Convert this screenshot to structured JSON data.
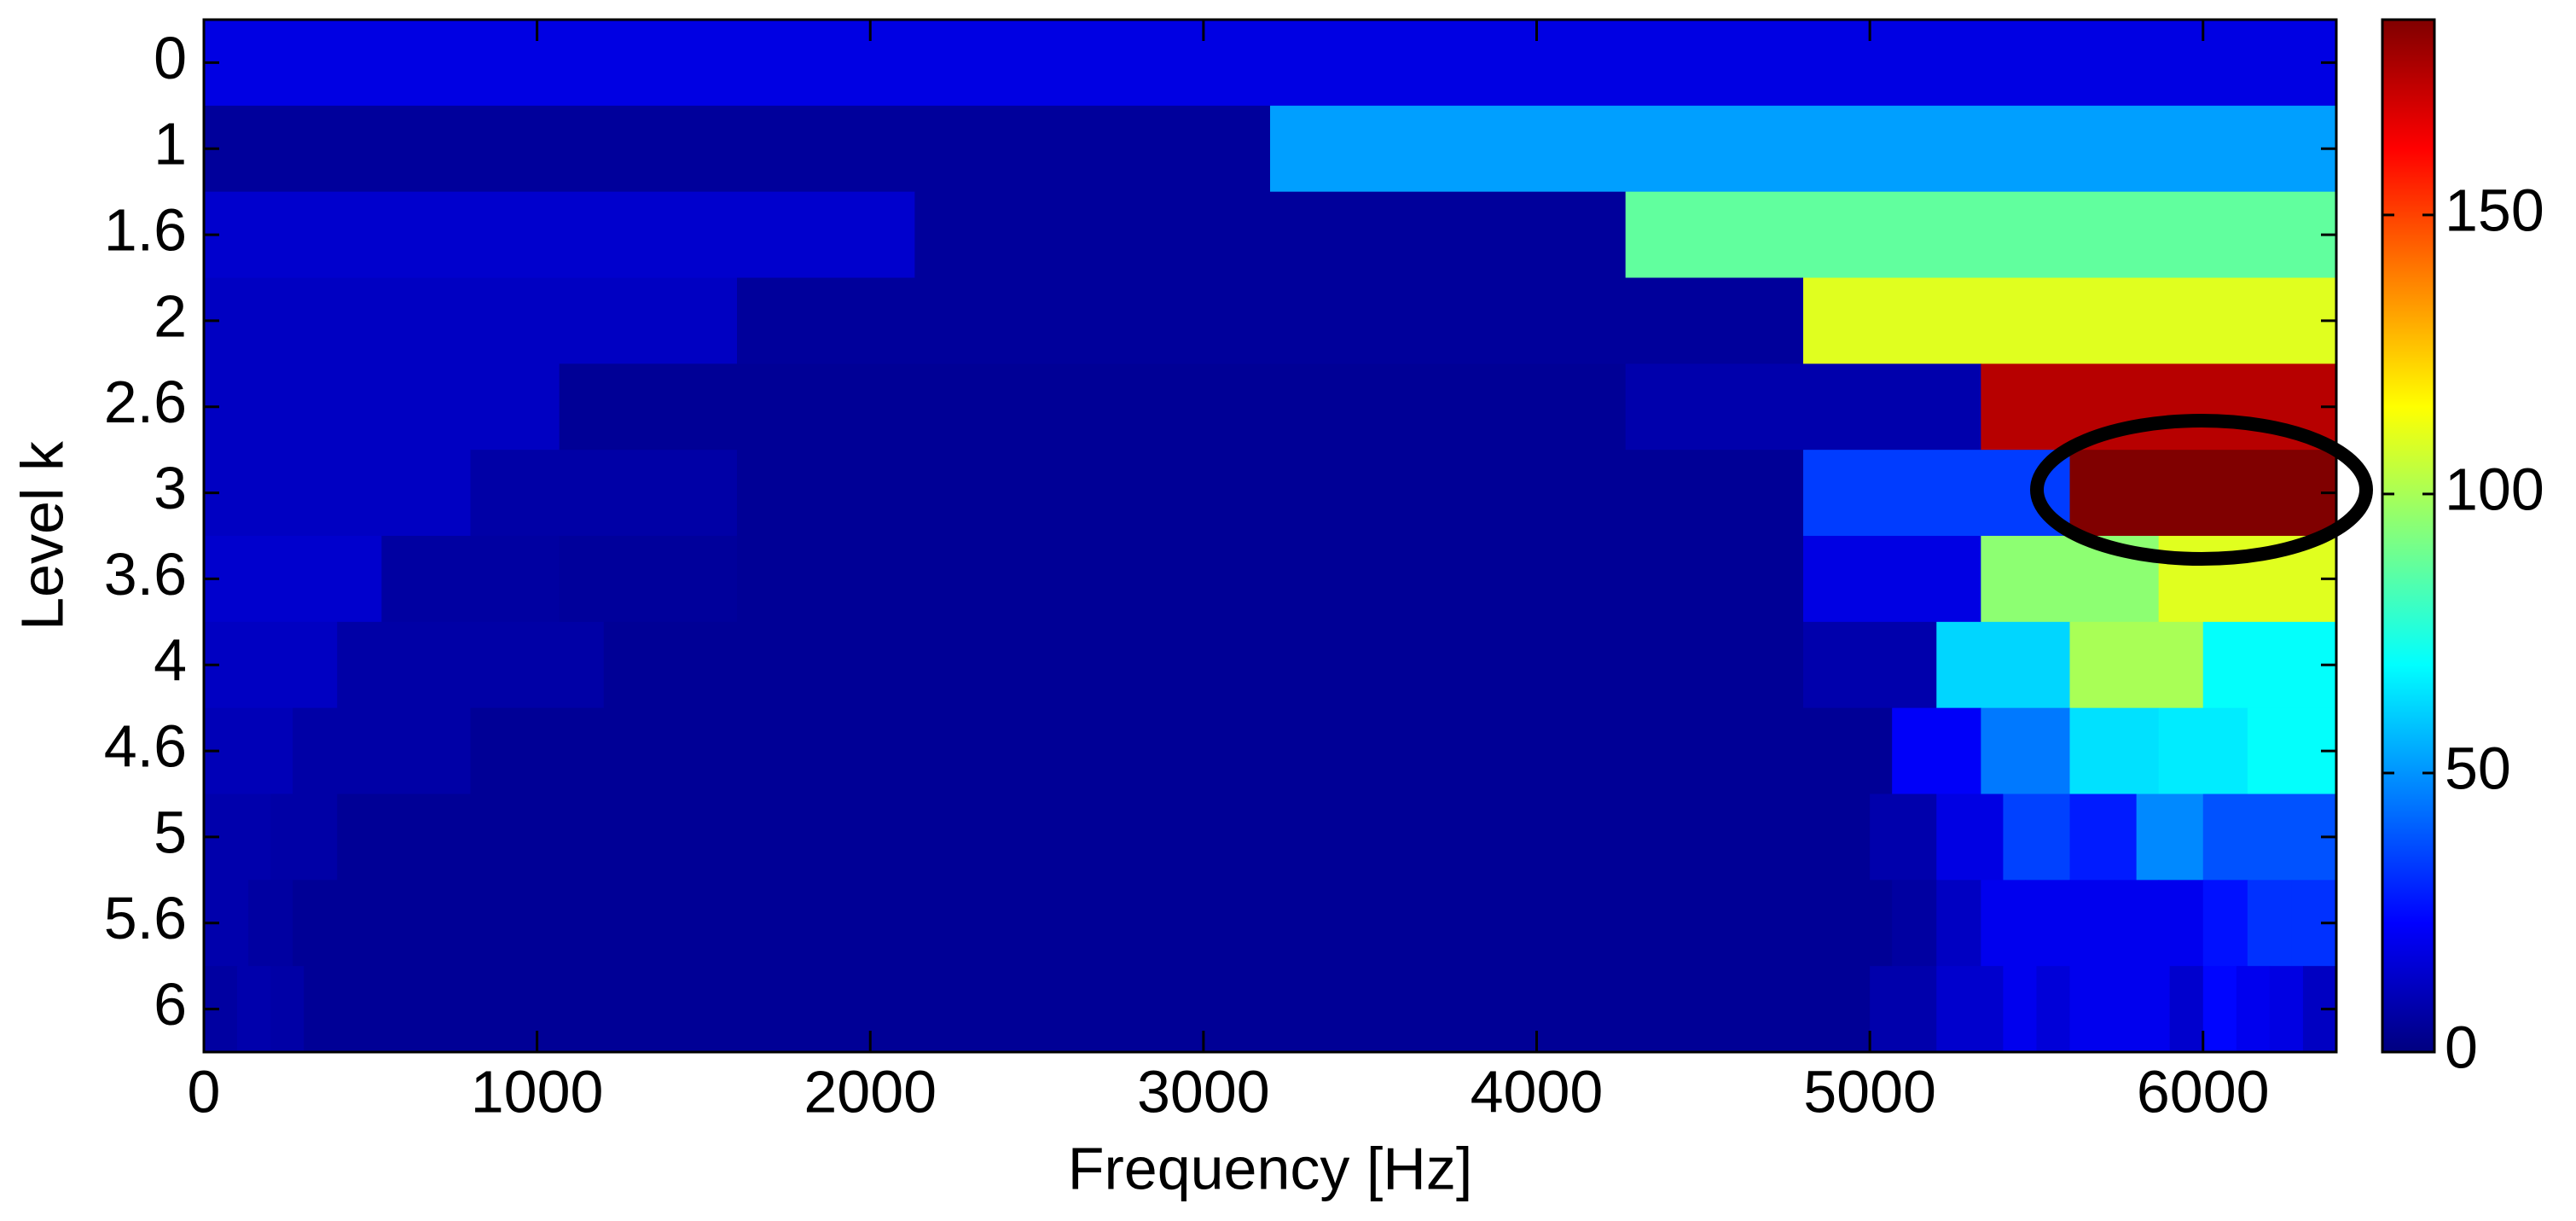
{
  "chart_data": {
    "type": "heatmap",
    "x_label": "Frequency [Hz]",
    "y_label": "Level k",
    "xlim": [
      0,
      6400
    ],
    "xticks": [
      0,
      1000,
      2000,
      3000,
      4000,
      5000,
      6000
    ],
    "colormap": "jet",
    "clim": [
      0,
      185
    ],
    "cticks": [
      0,
      50,
      100,
      150
    ],
    "rows": [
      {
        "label": "0",
        "values": [
          18
        ]
      },
      {
        "label": "1",
        "values": [
          5,
          52
        ]
      },
      {
        "label": "1.6",
        "values": [
          14,
          5,
          87
        ]
      },
      {
        "label": "2",
        "values": [
          12,
          5,
          5,
          110
        ]
      },
      {
        "label": "2.6",
        "values": [
          12,
          4,
          4,
          4,
          8,
          175
        ]
      },
      {
        "label": "3",
        "values": [
          12,
          7,
          4,
          4,
          4,
          4,
          34,
          185
        ]
      },
      {
        "label": "3.6",
        "values": [
          14,
          6,
          5,
          4,
          4,
          4,
          4,
          4,
          4,
          18,
          95,
          110
        ]
      },
      {
        "label": "4",
        "values": [
          12,
          7,
          7,
          4,
          4,
          4,
          4,
          4,
          4,
          4,
          4,
          4,
          8,
          62,
          100,
          70
        ]
      },
      {
        "label": "4.6",
        "values": [
          10,
          7,
          7,
          4,
          4,
          4,
          4,
          4,
          4,
          4,
          4,
          4,
          4,
          4,
          4,
          4,
          4,
          4,
          4,
          22,
          45,
          64,
          66,
          70
        ]
      },
      {
        "label": "5",
        "values": [
          8,
          7,
          4,
          4,
          4,
          4,
          4,
          4,
          4,
          4,
          4,
          4,
          4,
          4,
          4,
          4,
          4,
          4,
          4,
          4,
          4,
          4,
          4,
          4,
          4,
          8,
          18,
          35,
          28,
          48,
          38,
          38
        ]
      },
      {
        "label": "5.6",
        "values": [
          8,
          6,
          4,
          4,
          4,
          4,
          4,
          4,
          4,
          4,
          4,
          4,
          4,
          4,
          4,
          4,
          4,
          4,
          4,
          4,
          4,
          4,
          4,
          4,
          4,
          4,
          4,
          4,
          4,
          4,
          4,
          4,
          4,
          4,
          4,
          4,
          4,
          4,
          6,
          12,
          20,
          20,
          20,
          20,
          20,
          26,
          32,
          32
        ]
      },
      {
        "label": "6",
        "values": [
          6,
          8,
          7,
          4,
          4,
          4,
          4,
          4,
          4,
          4,
          4,
          4,
          4,
          4,
          4,
          4,
          4,
          4,
          4,
          4,
          4,
          4,
          4,
          4,
          4,
          4,
          4,
          4,
          4,
          4,
          4,
          4,
          4,
          4,
          4,
          4,
          4,
          4,
          4,
          4,
          4,
          4,
          4,
          4,
          4,
          4,
          4,
          4,
          4,
          4,
          8,
          8,
          14,
          14,
          20,
          16,
          20,
          20,
          20,
          14,
          24,
          20,
          18,
          12
        ]
      }
    ]
  }
}
